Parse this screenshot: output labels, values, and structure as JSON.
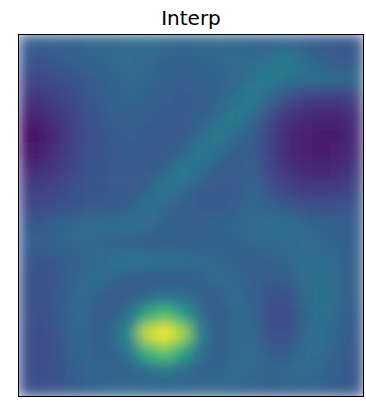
{
  "chart_data": {
    "type": "heatmap",
    "title": "Interp",
    "tick_labels": false,
    "clim": [
      0,
      1
    ],
    "cells": [
      [
        0.3,
        0.3,
        0.31,
        0.32,
        0.33,
        0.33,
        0.35,
        0.36,
        0.34,
        0.32,
        0.33,
        0.34,
        0.33,
        0.32,
        0.31,
        0.33,
        0.3,
        0.28,
        0.27,
        0.27
      ],
      [
        0.26,
        0.27,
        0.29,
        0.31,
        0.32,
        0.34,
        0.35,
        0.34,
        0.32,
        0.31,
        0.32,
        0.33,
        0.34,
        0.35,
        0.38,
        0.42,
        0.36,
        0.32,
        0.3,
        0.28
      ],
      [
        0.2,
        0.22,
        0.24,
        0.27,
        0.3,
        0.32,
        0.34,
        0.33,
        0.31,
        0.3,
        0.31,
        0.32,
        0.34,
        0.38,
        0.42,
        0.38,
        0.36,
        0.36,
        0.35,
        0.33
      ],
      [
        0.15,
        0.17,
        0.2,
        0.24,
        0.28,
        0.31,
        0.33,
        0.32,
        0.3,
        0.29,
        0.3,
        0.32,
        0.36,
        0.42,
        0.34,
        0.25,
        0.2,
        0.18,
        0.18,
        0.2
      ],
      [
        0.08,
        0.12,
        0.17,
        0.22,
        0.27,
        0.3,
        0.31,
        0.3,
        0.29,
        0.28,
        0.3,
        0.34,
        0.42,
        0.36,
        0.24,
        0.16,
        0.12,
        0.11,
        0.11,
        0.14
      ],
      [
        0.02,
        0.08,
        0.15,
        0.21,
        0.26,
        0.29,
        0.3,
        0.29,
        0.28,
        0.28,
        0.33,
        0.42,
        0.36,
        0.3,
        0.2,
        0.12,
        0.09,
        0.08,
        0.08,
        0.12
      ],
      [
        0.05,
        0.1,
        0.16,
        0.22,
        0.26,
        0.28,
        0.29,
        0.28,
        0.28,
        0.32,
        0.42,
        0.36,
        0.3,
        0.3,
        0.2,
        0.12,
        0.09,
        0.08,
        0.09,
        0.13
      ],
      [
        0.12,
        0.14,
        0.18,
        0.23,
        0.27,
        0.28,
        0.28,
        0.28,
        0.32,
        0.42,
        0.36,
        0.3,
        0.28,
        0.31,
        0.22,
        0.15,
        0.12,
        0.11,
        0.12,
        0.16
      ],
      [
        0.18,
        0.19,
        0.22,
        0.25,
        0.27,
        0.28,
        0.28,
        0.31,
        0.41,
        0.35,
        0.3,
        0.28,
        0.28,
        0.33,
        0.26,
        0.2,
        0.17,
        0.17,
        0.18,
        0.21
      ],
      [
        0.22,
        0.23,
        0.25,
        0.27,
        0.28,
        0.29,
        0.31,
        0.38,
        0.34,
        0.3,
        0.29,
        0.29,
        0.3,
        0.34,
        0.32,
        0.28,
        0.25,
        0.24,
        0.25,
        0.27
      ],
      [
        0.27,
        0.29,
        0.32,
        0.34,
        0.36,
        0.36,
        0.37,
        0.35,
        0.32,
        0.31,
        0.31,
        0.32,
        0.33,
        0.35,
        0.36,
        0.36,
        0.34,
        0.32,
        0.31,
        0.3
      ],
      [
        0.3,
        0.31,
        0.33,
        0.34,
        0.33,
        0.32,
        0.31,
        0.3,
        0.3,
        0.3,
        0.3,
        0.31,
        0.32,
        0.33,
        0.34,
        0.34,
        0.35,
        0.34,
        0.32,
        0.3
      ],
      [
        0.26,
        0.27,
        0.29,
        0.31,
        0.34,
        0.37,
        0.38,
        0.38,
        0.37,
        0.36,
        0.35,
        0.33,
        0.31,
        0.3,
        0.31,
        0.33,
        0.36,
        0.36,
        0.33,
        0.3
      ],
      [
        0.25,
        0.26,
        0.28,
        0.33,
        0.36,
        0.33,
        0.3,
        0.29,
        0.29,
        0.3,
        0.32,
        0.35,
        0.34,
        0.31,
        0.28,
        0.3,
        0.35,
        0.38,
        0.34,
        0.3
      ],
      [
        0.25,
        0.26,
        0.29,
        0.35,
        0.32,
        0.28,
        0.3,
        0.34,
        0.38,
        0.36,
        0.31,
        0.3,
        0.35,
        0.32,
        0.26,
        0.24,
        0.33,
        0.38,
        0.34,
        0.3
      ],
      [
        0.24,
        0.25,
        0.29,
        0.35,
        0.3,
        0.3,
        0.38,
        0.62,
        0.72,
        0.58,
        0.36,
        0.29,
        0.34,
        0.33,
        0.24,
        0.22,
        0.32,
        0.38,
        0.33,
        0.29
      ],
      [
        0.23,
        0.24,
        0.28,
        0.34,
        0.3,
        0.33,
        0.5,
        0.92,
        1.0,
        0.86,
        0.44,
        0.3,
        0.33,
        0.34,
        0.26,
        0.24,
        0.33,
        0.37,
        0.32,
        0.28
      ],
      [
        0.23,
        0.24,
        0.27,
        0.33,
        0.31,
        0.31,
        0.4,
        0.66,
        0.76,
        0.6,
        0.37,
        0.3,
        0.33,
        0.35,
        0.3,
        0.29,
        0.35,
        0.35,
        0.31,
        0.27
      ],
      [
        0.23,
        0.24,
        0.27,
        0.31,
        0.33,
        0.31,
        0.32,
        0.36,
        0.4,
        0.35,
        0.31,
        0.32,
        0.35,
        0.34,
        0.33,
        0.34,
        0.35,
        0.33,
        0.3,
        0.27
      ],
      [
        0.24,
        0.25,
        0.27,
        0.29,
        0.32,
        0.34,
        0.34,
        0.33,
        0.32,
        0.33,
        0.34,
        0.35,
        0.33,
        0.31,
        0.3,
        0.31,
        0.32,
        0.31,
        0.29,
        0.27
      ]
    ]
  }
}
